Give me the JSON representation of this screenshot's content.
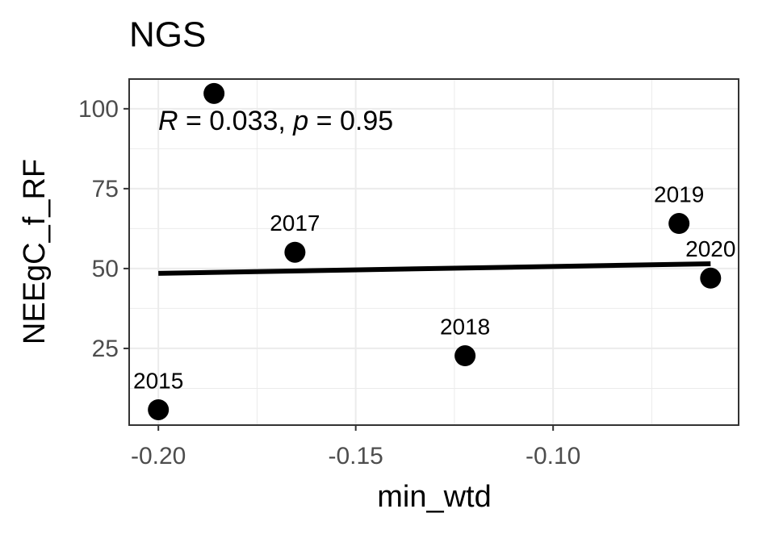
{
  "chart_data": {
    "type": "scatter",
    "title": "NGS",
    "x_label": "min_wtd",
    "y_label": "NEEgC_f_RF",
    "annotation": [
      "R",
      " = 0.033, ",
      "p",
      " = 0.95"
    ],
    "x": [
      -0.2,
      -0.1859,
      -0.1654,
      -0.1223,
      -0.0681,
      -0.0601
    ],
    "values": [
      5.8,
      104.8,
      55.1,
      22.7,
      64.1,
      47.0
    ],
    "labels": [
      "2015",
      null,
      "2017",
      "2018",
      "2019",
      "2020"
    ],
    "color": "#000000",
    "fit": {
      "x": [
        -0.2,
        -0.0601
      ],
      "y": [
        48.5,
        51.5
      ],
      "color": "#000000"
    },
    "xlim": [
      -0.2074,
      -0.053
    ],
    "ylim": [
      1.0,
      109.3
    ],
    "xticks": [
      {
        "value": -0.2,
        "label": "-0.20"
      },
      {
        "value": -0.15,
        "label": "-0.15"
      },
      {
        "value": -0.1,
        "label": "-0.10"
      }
    ],
    "yticks": [
      25,
      50,
      75,
      100
    ],
    "xminor": [
      -0.175,
      -0.125,
      -0.075
    ],
    "yminor": [
      12.5,
      37.5,
      62.5,
      87.5
    ],
    "grid": true
  }
}
